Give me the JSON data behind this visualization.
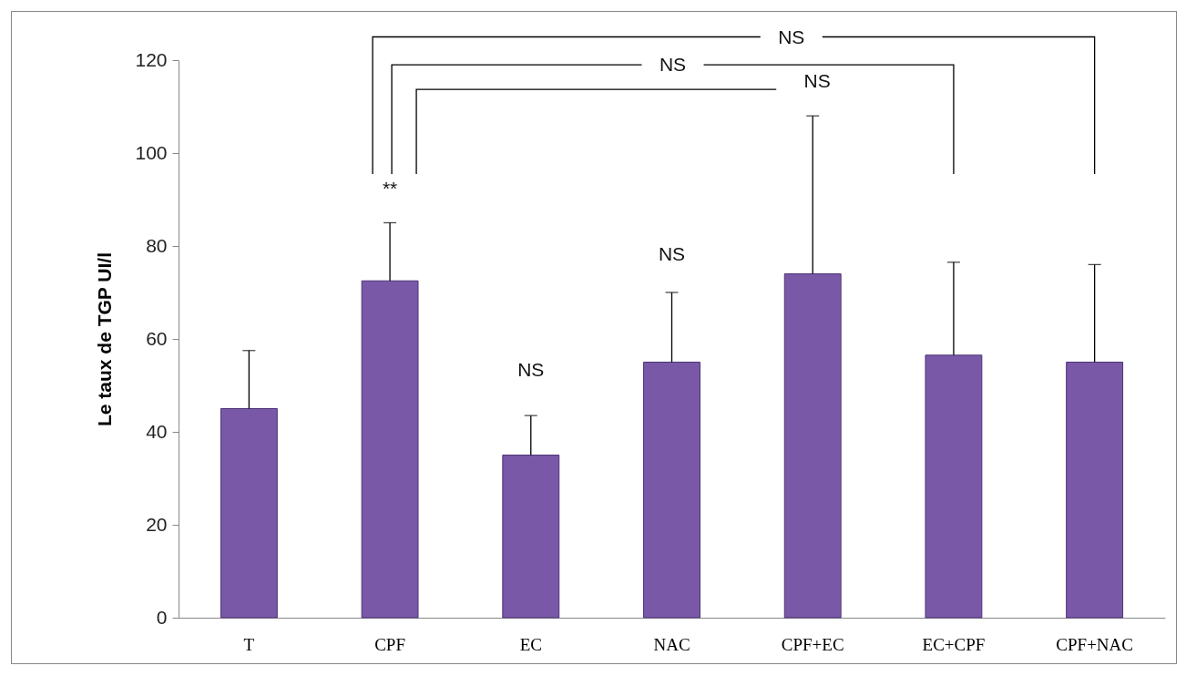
{
  "chart_data": {
    "type": "bar",
    "ylabel": "Le taux de TGP UI/l",
    "categories": [
      "T",
      "CPF",
      "EC",
      "NAC",
      "CPF+EC",
      "EC+CPF",
      "CPF+NAC"
    ],
    "values": [
      45,
      72.5,
      35,
      55,
      74,
      56.5,
      55
    ],
    "errors": [
      [
        45,
        57.5
      ],
      [
        72.5,
        85
      ],
      [
        35,
        43.5
      ],
      [
        55,
        70
      ],
      [
        74,
        108
      ],
      [
        56.5,
        76.5
      ],
      [
        55,
        76
      ]
    ],
    "color": "#7a58a8",
    "ylim": [
      0,
      120
    ],
    "yticks": [
      0,
      20,
      40,
      60,
      80,
      100,
      120
    ],
    "grid": false,
    "annotations": [
      "**",
      "NS",
      "NS",
      "NS",
      "NS",
      "NS"
    ]
  }
}
